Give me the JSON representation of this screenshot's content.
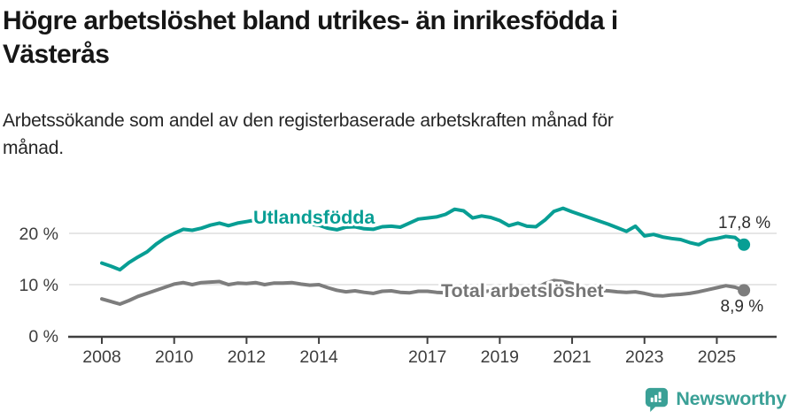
{
  "header": {
    "title_lines": [
      "Högre arbetslöshet bland utrikes- än inrikesfödda i",
      "Västerås"
    ],
    "subtitle_lines": [
      "Arbetssökande som andel av den registerbaserade arbetskraften månad för",
      "månad."
    ]
  },
  "chart_data": {
    "type": "line",
    "title": "Högre arbetslöshet bland utrikes- än inrikesfödda i Västerås",
    "subtitle": "Arbetssökande som andel av den registerbaserade arbetskraften månad för månad.",
    "unit": "%",
    "grid": "horizontal",
    "legend_position": "inline-labels-on-lines",
    "xlim": [
      2007.3,
      2026.5
    ],
    "ylim": [
      0,
      27.5
    ],
    "x_tick_years": [
      2008,
      2010,
      2012,
      2014,
      2017,
      2019,
      2021,
      2023,
      2025
    ],
    "x_tick_labels": [
      "2008",
      "2010",
      "2012",
      "2014",
      "2017",
      "2019",
      "2021",
      "2023",
      "2025"
    ],
    "y_ticks": [
      {
        "value": 0,
        "label": "0 %"
      },
      {
        "value": 10,
        "label": "10 %"
      },
      {
        "value": 20,
        "label": "20 %"
      }
    ],
    "series": [
      {
        "name": "Utlandsfödda",
        "color": "#089e94",
        "label_color": "#089e94",
        "end_label": "17,8 %",
        "last_value": 17.8,
        "x_start": 2008,
        "x_step_years": 0.25,
        "values": [
          14.2,
          13.6,
          12.9,
          14.3,
          15.4,
          16.4,
          17.9,
          19.1,
          20.0,
          20.8,
          20.6,
          21.0,
          21.6,
          22.0,
          21.5,
          22.0,
          22.3,
          22.6,
          22.4,
          22.7,
          22.8,
          22.5,
          22.1,
          21.8,
          21.6,
          21.0,
          20.7,
          21.2,
          21.3,
          20.9,
          20.8,
          21.3,
          21.4,
          21.2,
          22.0,
          22.8,
          23.0,
          23.2,
          23.7,
          24.7,
          24.4,
          23.0,
          23.4,
          23.1,
          22.5,
          21.5,
          22.0,
          21.4,
          21.3,
          22.6,
          24.3,
          24.9,
          24.2,
          23.6,
          23.0,
          22.4,
          21.8,
          21.1,
          20.4,
          21.4,
          19.5,
          19.8,
          19.3,
          19.0,
          18.8,
          18.2,
          17.8,
          18.7,
          19.0,
          19.4,
          19.2,
          17.8
        ]
      },
      {
        "name": "Total arbetslöshet",
        "color": "#7d7d7d",
        "label_color": "#757575",
        "end_label": "8,9 %",
        "last_value": 8.9,
        "x_start": 2008,
        "x_step_years": 0.25,
        "values": [
          7.2,
          6.7,
          6.2,
          6.9,
          7.7,
          8.3,
          8.9,
          9.5,
          10.1,
          10.4,
          10.0,
          10.4,
          10.5,
          10.6,
          10.0,
          10.3,
          10.2,
          10.4,
          10.0,
          10.3,
          10.3,
          10.4,
          10.1,
          9.9,
          10.0,
          9.4,
          8.9,
          8.6,
          8.8,
          8.5,
          8.3,
          8.7,
          8.8,
          8.5,
          8.4,
          8.7,
          8.7,
          8.5,
          8.4,
          8.8,
          8.7,
          8.5,
          8.6,
          8.8,
          8.9,
          8.8,
          9.0,
          9.1,
          9.3,
          10.2,
          10.8,
          10.6,
          10.2,
          9.6,
          9.2,
          8.9,
          8.8,
          8.6,
          8.5,
          8.6,
          8.3,
          7.9,
          7.8,
          8.0,
          8.1,
          8.3,
          8.6,
          9.0,
          9.4,
          9.8,
          9.5,
          8.9
        ]
      }
    ]
  },
  "footer": {
    "brand": "Newsworthy",
    "logo_icon": "bar-chart-speech-bubble-icon",
    "brand_color": "#3aa096"
  },
  "colors": {
    "background": "#ffffff",
    "title_text": "#161616",
    "subtitle_text": "#262626",
    "axis": "#3f3f3f",
    "axis_text": "#3d3d3d",
    "gridline": "#d8d8d8",
    "value_label_text": "#2d2d2d",
    "series_foreign_born": "#089e94",
    "series_total": "#7d7d7d",
    "brand_teal": "#3aa096"
  }
}
